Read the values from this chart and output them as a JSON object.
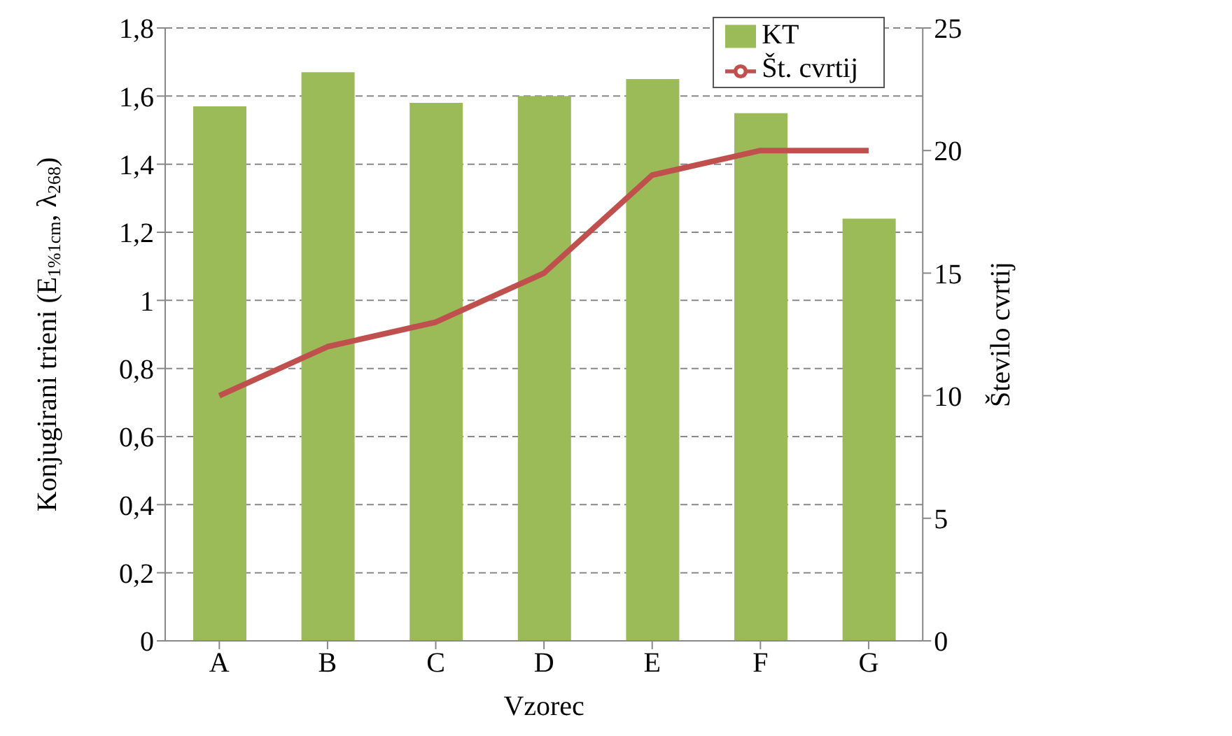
{
  "chart_data": {
    "type": "bar",
    "xlabel": "Vzorec",
    "ylabel": "Konjugirani trieni (E$_{1%1cm}$, λ$_{268}$)",
    "y2label": "Število cvrtij",
    "categories": [
      "A",
      "B",
      "C",
      "D",
      "E",
      "F",
      "G"
    ],
    "series": [
      {
        "name": "KT",
        "color": "#9bbb59",
        "values": [
          1.57,
          1.67,
          1.58,
          1.6,
          1.65,
          1.55,
          1.24
        ]
      },
      {
        "name": "Št. cvrtij",
        "type": "line",
        "axis": "y2",
        "color": "#c0504d",
        "marker": "none",
        "values": [
          10,
          12,
          13,
          15,
          19,
          20,
          20
        ]
      }
    ],
    "ylim": [
      0,
      1.8
    ],
    "yticks": [
      0,
      {
        "value": 0.2,
        "label": "0,2"
      },
      {
        "value": 0.4,
        "label": "0,4"
      },
      {
        "value": 0.6,
        "label": "0,6"
      },
      {
        "value": 0.8,
        "label": "0,8"
      },
      1,
      {
        "value": 1.2,
        "label": "1,2"
      },
      {
        "value": 1.4,
        "label": "1,4"
      },
      {
        "value": 1.6,
        "label": "1,6"
      },
      {
        "value": 1.8,
        "label": "1,8"
      }
    ],
    "y2lim": [
      0,
      25
    ],
    "y2ticks": [
      0,
      5,
      10,
      15,
      20,
      25
    ],
    "grid": "y",
    "legend": "top right"
  }
}
